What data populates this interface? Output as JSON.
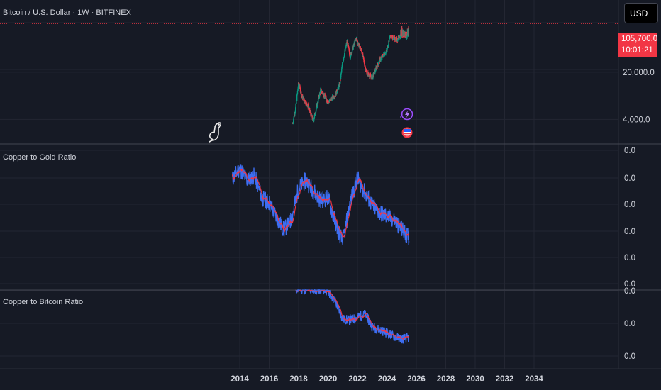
{
  "header": {
    "symbol_title": "Bitcoin / U.S. Dollar · 1W · BITFINEX",
    "currency_button": "USD"
  },
  "price_tag": {
    "price": "105,700.0",
    "countdown": "10:01:21"
  },
  "panes": {
    "price": {
      "y_ticks": [
        "20,000.0",
        "4,000.0"
      ]
    },
    "gold": {
      "title": "Copper to Gold Ratio",
      "y_ticks": [
        "0.0",
        "0.0",
        "0.0",
        "0.0",
        "0.0",
        "0.0"
      ]
    },
    "btc": {
      "title": "Copper to Bitcoin Ratio",
      "y_ticks": [
        "0.0",
        "0.0",
        "0.0"
      ]
    }
  },
  "icons": {
    "logo": "dino-logo-icon",
    "lightning": "lightning-icon",
    "flag": "us-flag-icon"
  },
  "colors": {
    "up": "#089981",
    "down": "#f23645",
    "ratio_line": "#3d6ef2",
    "ratio_ma": "#f23645",
    "price_line": "#f23645"
  },
  "chart_data": [
    {
      "type": "candlestick",
      "title": "Bitcoin / U.S. Dollar · 1W · BITFINEX",
      "y_scale": "log",
      "y_ticks": [
        20000,
        4000
      ],
      "last_price": 105700,
      "x": [
        2017.6,
        2017.8,
        2018.0,
        2018.2,
        2018.6,
        2019.0,
        2019.5,
        2020.0,
        2020.5,
        2020.8,
        2021.0,
        2021.3,
        2021.5,
        2021.9,
        2022.3,
        2022.6,
        2023.0,
        2023.5,
        2024.0,
        2024.2,
        2024.7,
        2025.0,
        2025.3,
        2025.5
      ],
      "close": [
        3500,
        6000,
        14000,
        9000,
        6500,
        3800,
        11000,
        7200,
        9200,
        13500,
        29000,
        58000,
        34000,
        64000,
        40000,
        20000,
        16500,
        30000,
        42000,
        70000,
        60000,
        95000,
        82000,
        105700
      ]
    },
    {
      "type": "line",
      "title": "Copper to Gold Ratio",
      "series": [
        {
          "values": [
            0.208,
            0.23,
            0.205,
            0.215,
            0.17,
            0.16,
            0.13,
            0.105,
            0.125,
            0.19,
            0.205,
            0.185,
            0.165,
            0.17,
            0.12,
            0.08,
            0.16,
            0.21,
            0.18,
            0.155,
            0.14,
            0.125,
            0.09
          ]
        }
      ],
      "x": [
        2013.5,
        2014.0,
        2014.5,
        2015.0,
        2015.5,
        2016.0,
        2016.5,
        2017.0,
        2017.5,
        2018.0,
        2018.5,
        2019.0,
        2019.5,
        2020.0,
        2020.5,
        2021.0,
        2021.5,
        2022.0,
        2022.5,
        2023.0,
        2023.5,
        2024.5,
        2025.5
      ]
    },
    {
      "type": "line",
      "title": "Copper to Bitcoin Ratio",
      "series": [
        {
          "values": [
            0.8,
            0.8,
            0.79,
            0.7,
            0.56,
            0.55,
            0.57,
            0.6,
            0.5,
            0.46,
            0.42,
            0.4,
            0.41
          ]
        }
      ],
      "x": [
        2017.8,
        2019.0,
        2020.0,
        2020.5,
        2021.0,
        2021.5,
        2021.9,
        2022.5,
        2023.0,
        2023.8,
        2024.5,
        2025.0,
        2025.5
      ]
    }
  ],
  "x_axis": {
    "ticks": [
      "2014",
      "2016",
      "2018",
      "2020",
      "2022",
      "2024",
      "2026",
      "2028",
      "2030",
      "2032",
      "2034"
    ]
  }
}
